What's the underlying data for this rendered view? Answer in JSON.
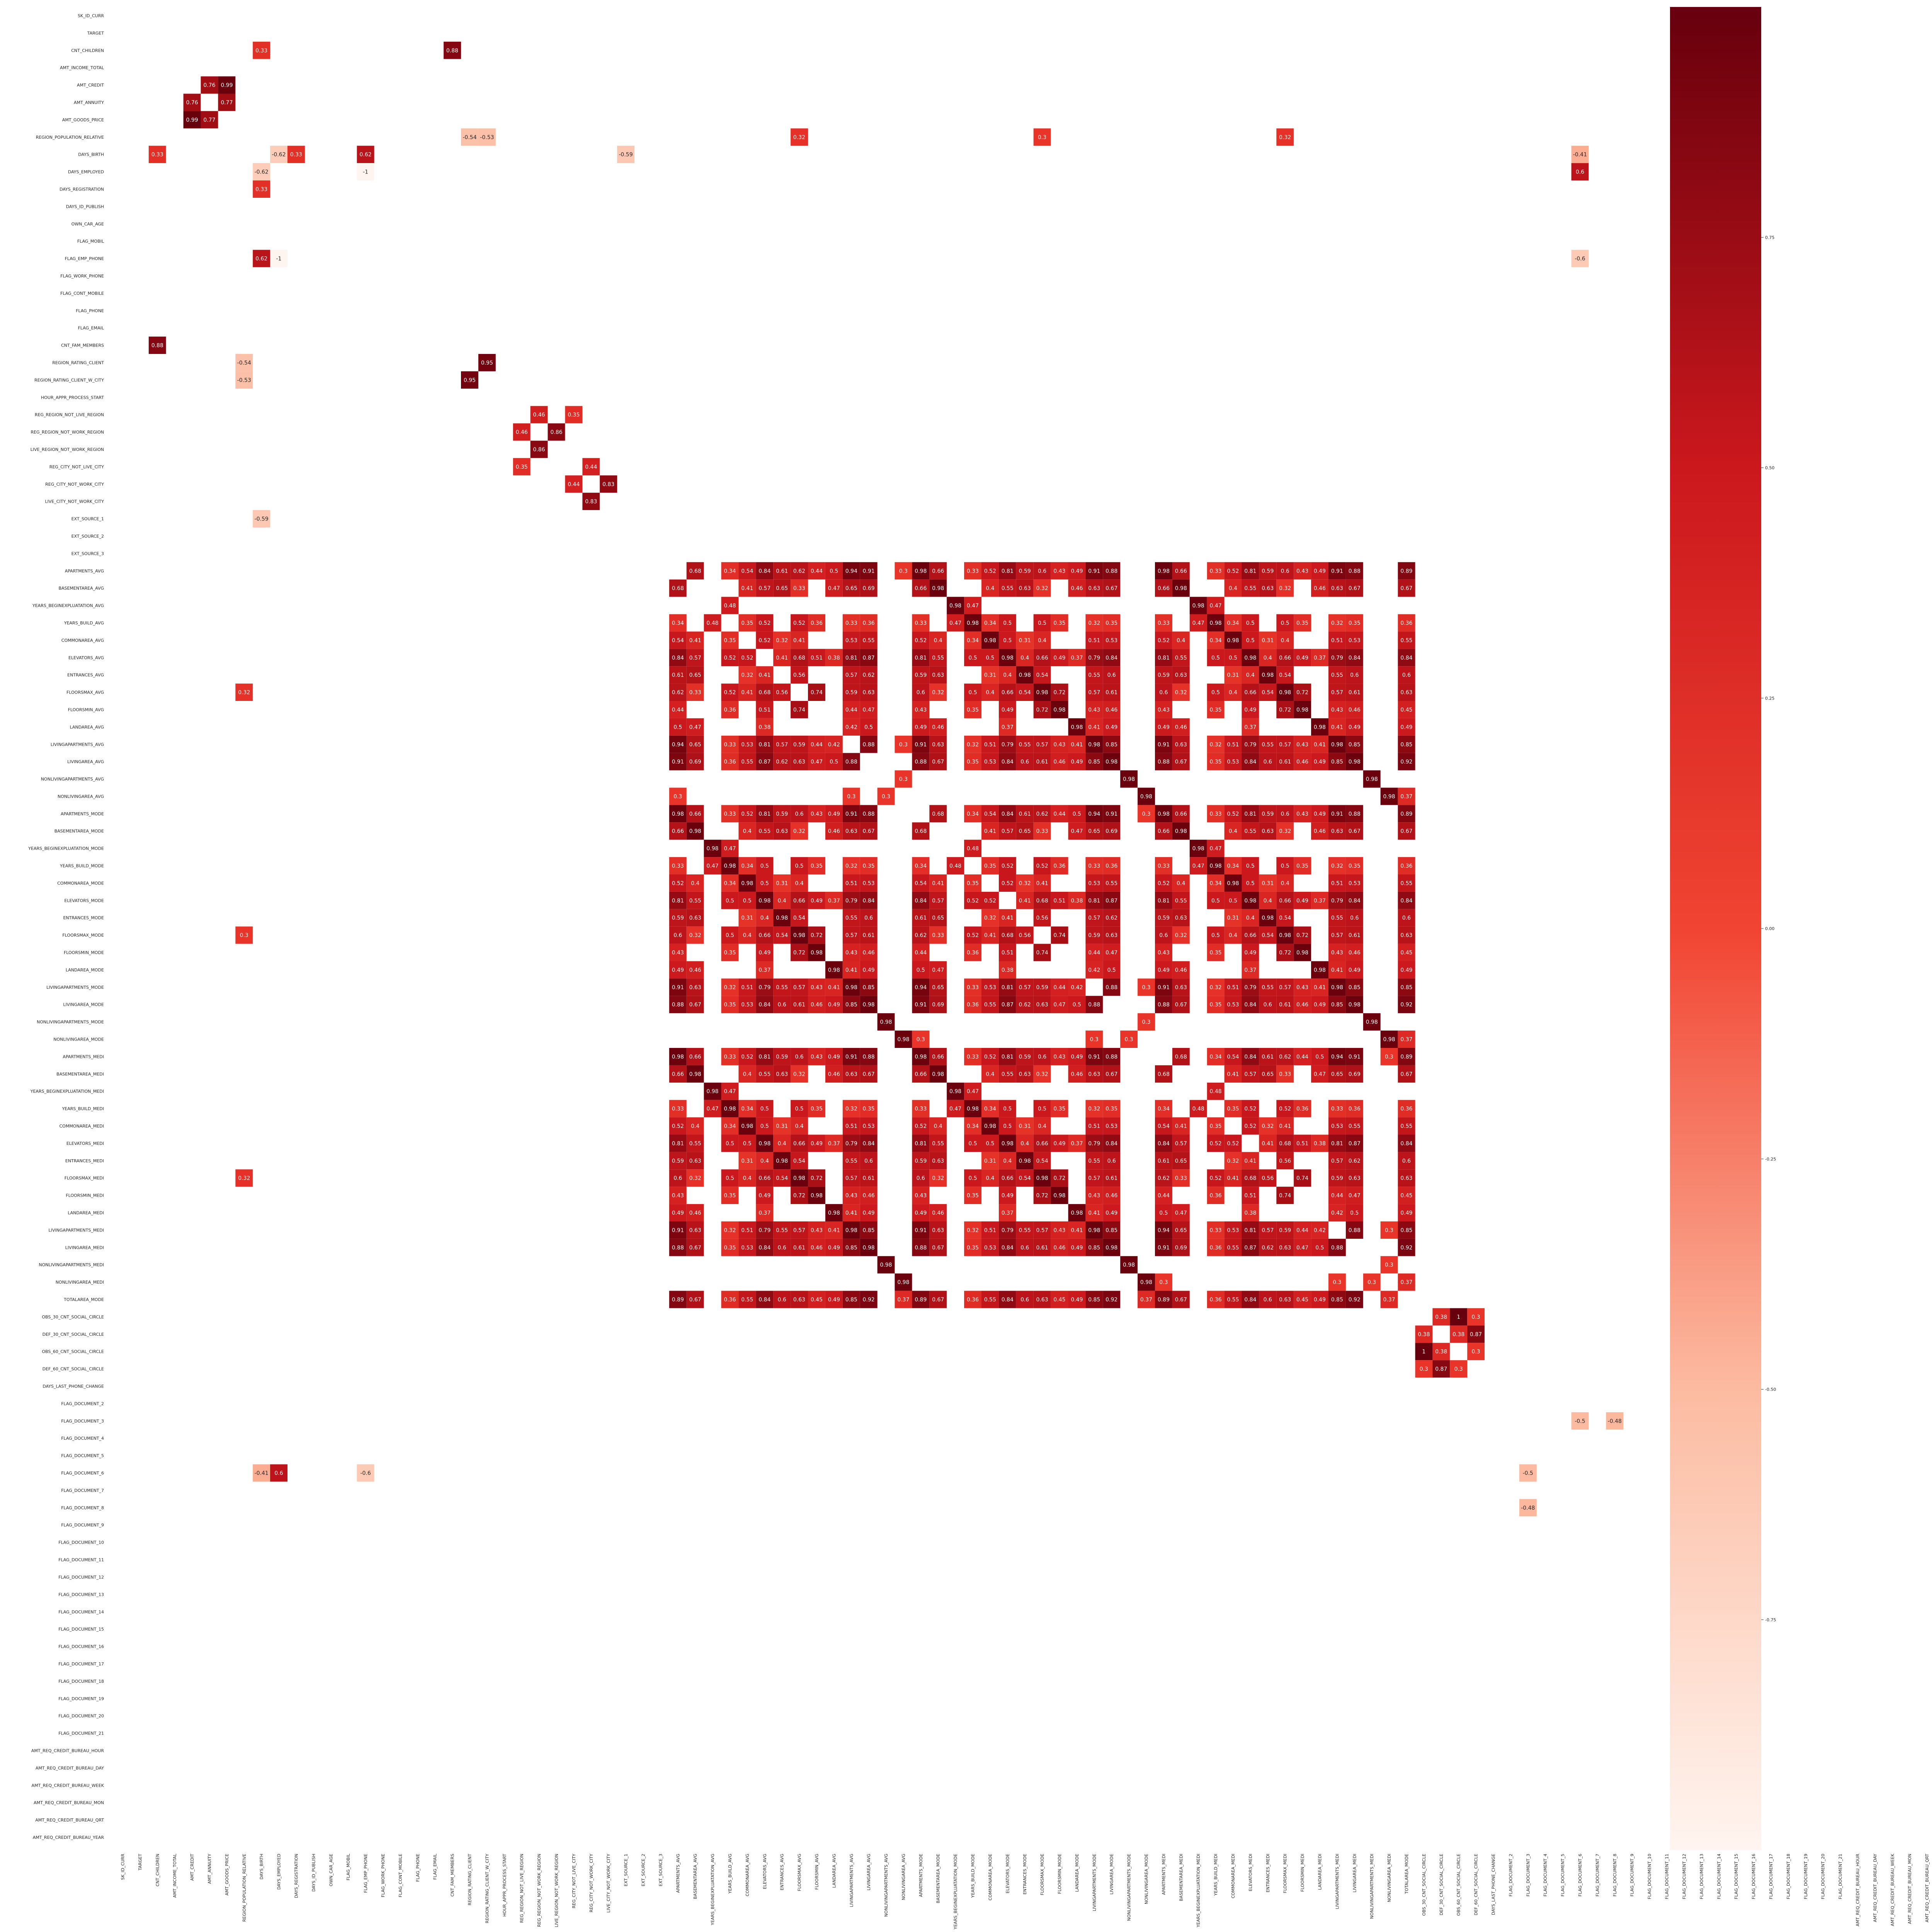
{
  "chart_data": {
    "type": "heatmap",
    "title": "",
    "xlabel": "",
    "ylabel": "",
    "cmap": "Reds",
    "colors": {
      "low": "#fff5f0",
      "mid": "#f14432",
      "high": "#67000d"
    },
    "vlim": [
      -1,
      1
    ],
    "masked_if_abs_below": 0.3,
    "colorbar_ticks": [
      "0.75",
      "0.50",
      "0.25",
      "0.00",
      "-0.25",
      "-0.50",
      "-0.75"
    ],
    "colorbar_tick_values": [
      0.75,
      0.5,
      0.25,
      0.0,
      -0.25,
      -0.5,
      -0.75
    ],
    "labels": [
      "SK_ID_CURR",
      "TARGET",
      "CNT_CHILDREN",
      "AMT_INCOME_TOTAL",
      "AMT_CREDIT",
      "AMT_ANNUITY",
      "AMT_GOODS_PRICE",
      "REGION_POPULATION_RELATIVE",
      "DAYS_BIRTH",
      "DAYS_EMPLOYED",
      "DAYS_REGISTRATION",
      "DAYS_ID_PUBLISH",
      "OWN_CAR_AGE",
      "FLAG_MOBIL",
      "FLAG_EMP_PHONE",
      "FLAG_WORK_PHONE",
      "FLAG_CONT_MOBILE",
      "FLAG_PHONE",
      "FLAG_EMAIL",
      "CNT_FAM_MEMBERS",
      "REGION_RATING_CLIENT",
      "REGION_RATING_CLIENT_W_CITY",
      "HOUR_APPR_PROCESS_START",
      "REG_REGION_NOT_LIVE_REGION",
      "REG_REGION_NOT_WORK_REGION",
      "LIVE_REGION_NOT_WORK_REGION",
      "REG_CITY_NOT_LIVE_CITY",
      "REG_CITY_NOT_WORK_CITY",
      "LIVE_CITY_NOT_WORK_CITY",
      "EXT_SOURCE_1",
      "EXT_SOURCE_2",
      "EXT_SOURCE_3",
      "APARTMENTS_AVG",
      "BASEMENTAREA_AVG",
      "YEARS_BEGINEXPLUATATION_AVG",
      "YEARS_BUILD_AVG",
      "COMMONAREA_AVG",
      "ELEVATORS_AVG",
      "ENTRANCES_AVG",
      "FLOORSMAX_AVG",
      "FLOORSMIN_AVG",
      "LANDAREA_AVG",
      "LIVINGAPARTMENTS_AVG",
      "LIVINGAREA_AVG",
      "NONLIVINGAPARTMENTS_AVG",
      "NONLIVINGAREA_AVG",
      "APARTMENTS_MODE",
      "BASEMENTAREA_MODE",
      "YEARS_BEGINEXPLUATATION_MODE",
      "YEARS_BUILD_MODE",
      "COMMONAREA_MODE",
      "ELEVATORS_MODE",
      "ENTRANCES_MODE",
      "FLOORSMAX_MODE",
      "FLOORSMIN_MODE",
      "LANDAREA_MODE",
      "LIVINGAPARTMENTS_MODE",
      "LIVINGAREA_MODE",
      "NONLIVINGAPARTMENTS_MODE",
      "NONLIVINGAREA_MODE",
      "APARTMENTS_MEDI",
      "BASEMENTAREA_MEDI",
      "YEARS_BEGINEXPLUATATION_MEDI",
      "YEARS_BUILD_MEDI",
      "COMMONAREA_MEDI",
      "ELEVATORS_MEDI",
      "ENTRANCES_MEDI",
      "FLOORSMAX_MEDI",
      "FLOORSMIN_MEDI",
      "LANDAREA_MEDI",
      "LIVINGAPARTMENTS_MEDI",
      "LIVINGAREA_MEDI",
      "NONLIVINGAPARTMENTS_MEDI",
      "NONLIVINGAREA_MEDI",
      "TOTALAREA_MODE",
      "OBS_30_CNT_SOCIAL_CIRCLE",
      "DEF_30_CNT_SOCIAL_CIRCLE",
      "OBS_60_CNT_SOCIAL_CIRCLE",
      "DEF_60_CNT_SOCIAL_CIRCLE",
      "DAYS_LAST_PHONE_CHANGE",
      "FLAG_DOCUMENT_2",
      "FLAG_DOCUMENT_3",
      "FLAG_DOCUMENT_4",
      "FLAG_DOCUMENT_5",
      "FLAG_DOCUMENT_6",
      "FLAG_DOCUMENT_7",
      "FLAG_DOCUMENT_8",
      "FLAG_DOCUMENT_9",
      "FLAG_DOCUMENT_10",
      "FLAG_DOCUMENT_11",
      "FLAG_DOCUMENT_12",
      "FLAG_DOCUMENT_13",
      "FLAG_DOCUMENT_14",
      "FLAG_DOCUMENT_15",
      "FLAG_DOCUMENT_16",
      "FLAG_DOCUMENT_17",
      "FLAG_DOCUMENT_18",
      "FLAG_DOCUMENT_19",
      "FLAG_DOCUMENT_20",
      "FLAG_DOCUMENT_21",
      "AMT_REQ_CREDIT_BUREAU_HOUR",
      "AMT_REQ_CREDIT_BUREAU_DAY",
      "AMT_REQ_CREDIT_BUREAU_WEEK",
      "AMT_REQ_CREDIT_BUREAU_MON",
      "AMT_REQ_CREDIT_BUREAU_QRT",
      "AMT_REQ_CREDIT_BUREAU_YEAR"
    ],
    "base_pairs": [
      [
        "CNT_CHILDREN",
        "DAYS_BIRTH",
        0.33
      ],
      [
        "CNT_CHILDREN",
        "CNT_FAM_MEMBERS",
        0.88
      ],
      [
        "AMT_CREDIT",
        "AMT_ANNUITY",
        0.76
      ],
      [
        "AMT_CREDIT",
        "AMT_GOODS_PRICE",
        0.99
      ],
      [
        "AMT_ANNUITY",
        "AMT_GOODS_PRICE",
        0.77
      ],
      [
        "REGION_POPULATION_RELATIVE",
        "REGION_RATING_CLIENT",
        -0.54
      ],
      [
        "REGION_POPULATION_RELATIVE",
        "REGION_RATING_CLIENT_W_CITY",
        -0.53
      ],
      [
        "REGION_POPULATION_RELATIVE",
        "FLOORSMAX_AVG",
        0.32
      ],
      [
        "REGION_POPULATION_RELATIVE",
        "FLOORSMAX_MODE",
        0.3
      ],
      [
        "REGION_POPULATION_RELATIVE",
        "FLOORSMAX_MEDI",
        0.32
      ],
      [
        "DAYS_BIRTH",
        "DAYS_EMPLOYED",
        -0.62
      ],
      [
        "DAYS_BIRTH",
        "DAYS_REGISTRATION",
        0.33
      ],
      [
        "DAYS_BIRTH",
        "FLAG_EMP_PHONE",
        0.62
      ],
      [
        "DAYS_BIRTH",
        "EXT_SOURCE_1",
        -0.59
      ],
      [
        "DAYS_BIRTH",
        "FLAG_DOCUMENT_6",
        -0.41
      ],
      [
        "DAYS_EMPLOYED",
        "FLAG_EMP_PHONE",
        -1
      ],
      [
        "DAYS_EMPLOYED",
        "FLAG_DOCUMENT_6",
        0.6
      ],
      [
        "FLAG_EMP_PHONE",
        "FLAG_DOCUMENT_6",
        -0.6
      ],
      [
        "REGION_RATING_CLIENT",
        "REGION_RATING_CLIENT_W_CITY",
        0.95
      ],
      [
        "REG_REGION_NOT_LIVE_REGION",
        "REG_REGION_NOT_WORK_REGION",
        0.46
      ],
      [
        "REG_REGION_NOT_WORK_REGION",
        "LIVE_REGION_NOT_WORK_REGION",
        0.86
      ],
      [
        "REG_REGION_NOT_LIVE_REGION",
        "REG_CITY_NOT_LIVE_CITY",
        0.35
      ],
      [
        "REG_CITY_NOT_LIVE_CITY",
        "REG_CITY_NOT_WORK_CITY",
        0.44
      ],
      [
        "REG_CITY_NOT_WORK_CITY",
        "LIVE_CITY_NOT_WORK_CITY",
        0.83
      ],
      [
        "OBS_30_CNT_SOCIAL_CIRCLE",
        "OBS_60_CNT_SOCIAL_CIRCLE",
        1
      ],
      [
        "OBS_30_CNT_SOCIAL_CIRCLE",
        "DEF_30_CNT_SOCIAL_CIRCLE",
        0.38
      ],
      [
        "OBS_30_CNT_SOCIAL_CIRCLE",
        "DEF_60_CNT_SOCIAL_CIRCLE",
        0.3
      ],
      [
        "DEF_30_CNT_SOCIAL_CIRCLE",
        "OBS_60_CNT_SOCIAL_CIRCLE",
        0.38
      ],
      [
        "DEF_30_CNT_SOCIAL_CIRCLE",
        "DEF_60_CNT_SOCIAL_CIRCLE",
        0.87
      ],
      [
        "OBS_60_CNT_SOCIAL_CIRCLE",
        "DEF_60_CNT_SOCIAL_CIRCLE",
        0.3
      ],
      [
        "FLAG_DOCUMENT_3",
        "FLAG_DOCUMENT_6",
        -0.5
      ],
      [
        "FLAG_DOCUMENT_3",
        "FLAG_DOCUMENT_8",
        -0.48
      ]
    ],
    "building_block": {
      "groups": [
        "AVG",
        "MODE",
        "MEDI"
      ],
      "features": [
        "APARTMENTS",
        "BASEMENTAREA",
        "YEARS_BEGINEXPLUATATION",
        "YEARS_BUILD",
        "COMMONAREA",
        "ELEVATORS",
        "ENTRANCES",
        "FLOORSMAX",
        "FLOORSMIN",
        "LANDAREA",
        "LIVINGAPARTMENTS",
        "LIVINGAREA",
        "NONLIVINGAPARTMENTS",
        "NONLIVINGAREA"
      ],
      "feature_correlations": [
        [
          "APARTMENTS",
          "BASEMENTAREA",
          0.68
        ],
        [
          "APARTMENTS",
          "YEARS_BUILD",
          0.34
        ],
        [
          "APARTMENTS",
          "COMMONAREA",
          0.54
        ],
        [
          "APARTMENTS",
          "ELEVATORS",
          0.84
        ],
        [
          "APARTMENTS",
          "ENTRANCES",
          0.61
        ],
        [
          "APARTMENTS",
          "FLOORSMAX",
          0.62
        ],
        [
          "APARTMENTS",
          "FLOORSMIN",
          0.44
        ],
        [
          "APARTMENTS",
          "LANDAREA",
          0.5
        ],
        [
          "APARTMENTS",
          "LIVINGAPARTMENTS",
          0.94
        ],
        [
          "APARTMENTS",
          "LIVINGAREA",
          0.91
        ],
        [
          "APARTMENTS",
          "NONLIVINGAREA",
          0.3
        ],
        [
          "BASEMENTAREA",
          "COMMONAREA",
          0.41
        ],
        [
          "BASEMENTAREA",
          "ELEVATORS",
          0.57
        ],
        [
          "BASEMENTAREA",
          "ENTRANCES",
          0.65
        ],
        [
          "BASEMENTAREA",
          "FLOORSMAX",
          0.33
        ],
        [
          "BASEMENTAREA",
          "LANDAREA",
          0.47
        ],
        [
          "BASEMENTAREA",
          "LIVINGAPARTMENTS",
          0.65
        ],
        [
          "BASEMENTAREA",
          "LIVINGAREA",
          0.69
        ],
        [
          "YEARS_BEGINEXPLUATATION",
          "YEARS_BUILD",
          0.48
        ],
        [
          "YEARS_BUILD",
          "COMMONAREA",
          0.35
        ],
        [
          "YEARS_BUILD",
          "ELEVATORS",
          0.52
        ],
        [
          "YEARS_BUILD",
          "FLOORSMAX",
          0.52
        ],
        [
          "YEARS_BUILD",
          "FLOORSMIN",
          0.36
        ],
        [
          "YEARS_BUILD",
          "LIVINGAPARTMENTS",
          0.33
        ],
        [
          "YEARS_BUILD",
          "LIVINGAREA",
          0.36
        ],
        [
          "COMMONAREA",
          "ELEVATORS",
          0.52
        ],
        [
          "COMMONAREA",
          "ENTRANCES",
          0.32
        ],
        [
          "COMMONAREA",
          "FLOORSMAX",
          0.41
        ],
        [
          "COMMONAREA",
          "LIVINGAPARTMENTS",
          0.53
        ],
        [
          "COMMONAREA",
          "LIVINGAREA",
          0.55
        ],
        [
          "ELEVATORS",
          "ENTRANCES",
          0.41
        ],
        [
          "ELEVATORS",
          "FLOORSMAX",
          0.68
        ],
        [
          "ELEVATORS",
          "FLOORSMIN",
          0.51
        ],
        [
          "ELEVATORS",
          "LANDAREA",
          0.38
        ],
        [
          "ELEVATORS",
          "LIVINGAPARTMENTS",
          0.81
        ],
        [
          "ELEVATORS",
          "LIVINGAREA",
          0.87
        ],
        [
          "ENTRANCES",
          "FLOORSMAX",
          0.56
        ],
        [
          "ENTRANCES",
          "LIVINGAPARTMENTS",
          0.57
        ],
        [
          "ENTRANCES",
          "LIVINGAREA",
          0.62
        ],
        [
          "FLOORSMAX",
          "FLOORSMIN",
          0.74
        ],
        [
          "FLOORSMAX",
          "LIVINGAPARTMENTS",
          0.59
        ],
        [
          "FLOORSMAX",
          "LIVINGAREA",
          0.63
        ],
        [
          "FLOORSMIN",
          "LIVINGAPARTMENTS",
          0.44
        ],
        [
          "FLOORSMIN",
          "LIVINGAREA",
          0.47
        ],
        [
          "LANDAREA",
          "LIVINGAPARTMENTS",
          0.42
        ],
        [
          "LANDAREA",
          "LIVINGAREA",
          0.5
        ],
        [
          "LIVINGAPARTMENTS",
          "LIVINGAREA",
          0.88
        ],
        [
          "LIVINGAPARTMENTS",
          "NONLIVINGAREA",
          0.3
        ],
        [
          "NONLIVINGAPARTMENTS",
          "NONLIVINGAREA",
          0.3
        ]
      ],
      "same_feature_across_groups": 0.98,
      "cross_group_factor": 0.97,
      "totalarea_mode": [
        [
          "APARTMENTS",
          0.89
        ],
        [
          "BASEMENTAREA",
          0.67
        ],
        [
          "YEARS_BUILD",
          0.36
        ],
        [
          "COMMONAREA",
          0.55
        ],
        [
          "ELEVATORS",
          0.84
        ],
        [
          "ENTRANCES",
          0.6
        ],
        [
          "FLOORSMAX",
          0.63
        ],
        [
          "FLOORSMIN",
          0.45
        ],
        [
          "LANDAREA",
          0.49
        ],
        [
          "LIVINGAPARTMENTS",
          0.85
        ],
        [
          "LIVINGAREA",
          0.92
        ],
        [
          "NONLIVINGAREA",
          0.37
        ]
      ]
    }
  }
}
